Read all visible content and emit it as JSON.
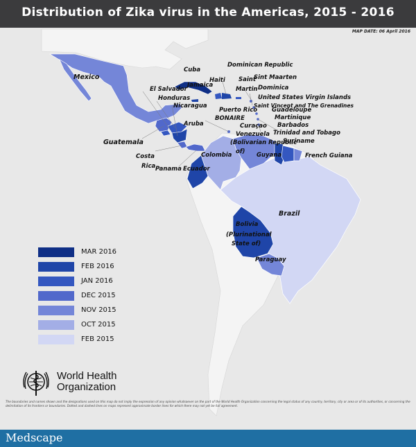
{
  "header": {
    "title": "Distribution of Zika virus in the Americas, 2015 - 2016"
  },
  "map_date": "MAP DATE: 06 April 2016",
  "colors": {
    "ocean": "#e8e8e8",
    "no_data": "#f4f4f4",
    "mar2016": "#0f2f86",
    "feb2016": "#1f45a8",
    "jan2016": "#3457c0",
    "dec2015": "#5168cb",
    "nov2015": "#7486d8",
    "oct2015": "#a3aee6",
    "feb2015": "#d2d7f4",
    "title_bar": "#3b3b3d",
    "footer_bar": "#1f6fa3"
  },
  "legend": [
    {
      "label": "MAR 2016",
      "color": "#0f2f86"
    },
    {
      "label": "FEB 2016",
      "color": "#1f45a8"
    },
    {
      "label": "JAN 2016",
      "color": "#3457c0"
    },
    {
      "label": "DEC 2015",
      "color": "#5168cb"
    },
    {
      "label": "NOV 2015",
      "color": "#7486d8"
    },
    {
      "label": "OCT 2015",
      "color": "#a3aee6"
    },
    {
      "label": "FEB 2015",
      "color": "#d2d7f4"
    }
  ],
  "labels": {
    "mexico": "Mexico",
    "cuba": "Cuba",
    "dominican_republic": "Dominican Republic",
    "haiti": "Haiti",
    "jamaica": "Jamaica",
    "saint_martin_1": "Saint",
    "saint_martin_2": "Martin",
    "sint_maarten": "Sint Maarten",
    "dominica": "Dominica",
    "usvi": "United States Virgin Islands",
    "el_salvador": "El Salvador",
    "honduras": "Honduras",
    "nicaragua": "Nicaragua",
    "puerto_rico": "Puerto Rico",
    "svg": "Saint Vincent and The Grenadines",
    "guadeloupe": "Guadeloupe",
    "martinique": "Martinique",
    "bonaire": "BONAIRE",
    "aruba": "Aruba",
    "curacao": "Curaçao",
    "barbados": "Barbados",
    "trinidad": "Trinidad and Tobago",
    "venezuela_1": "Venezuela",
    "venezuela_2": "(Bolivarian Republic",
    "venezuela_3": "of)",
    "suriname": "Suriname",
    "guatemala": "Guatemala",
    "costa_rica_1": "Costa",
    "costa_rica_2": "Rica",
    "panama": "Panama",
    "ecuador": "Ecuador",
    "colombia": "Colombia",
    "guyana": "Guyana",
    "french_guiana": "French Guiana",
    "brazil": "Brazil",
    "bolivia_1": "Bolivia",
    "bolivia_2": "(Plurinational",
    "bolivia_3": "State of)",
    "paraguay": "Paraguay"
  },
  "who": {
    "line1": "World Health",
    "line2": "Organization"
  },
  "disclaimer": "The boundaries and names shown and the designations used on this map do not imply the expression of any opinion whatsoever on the part of the World Health Organization concerning the legal status of any country, territory, city or area or of its authorities, or concerning the delimitation of its frontiers or boundaries. Dotted and dashed lines on maps represent approximate border lines for which there may not yet be full agreement.",
  "footer": {
    "brand": "Medscape"
  }
}
